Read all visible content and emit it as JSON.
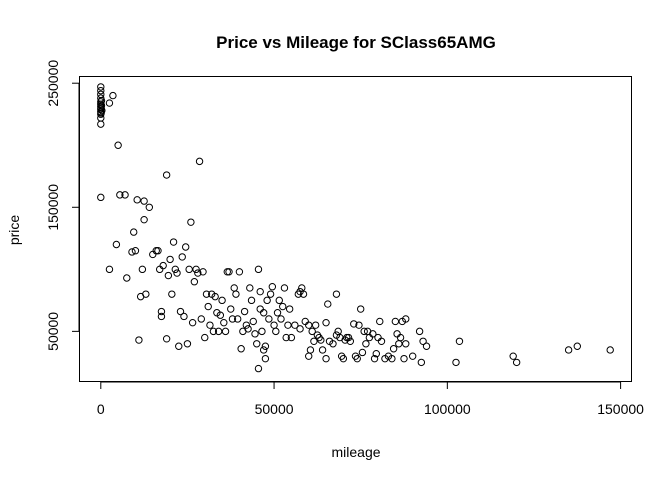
{
  "chart_data": {
    "type": "scatter",
    "title": "Price vs Mileage for SClass65AMG",
    "xlabel": "mileage",
    "ylabel": "price",
    "xlim": [
      -6000,
      153000
    ],
    "ylim": [
      10000,
      255000
    ],
    "xticks": [
      0,
      50000,
      100000,
      150000
    ],
    "xtick_labels": [
      "0",
      "50000",
      "100000",
      "150000"
    ],
    "yticks": [
      50000,
      150000,
      250000
    ],
    "ytick_labels": [
      "50000",
      "150000",
      "250000"
    ],
    "grid": false,
    "legend": "none",
    "points": [
      [
        0,
        247000
      ],
      [
        0,
        244000
      ],
      [
        0,
        241000
      ],
      [
        0,
        238000
      ],
      [
        0,
        235000
      ],
      [
        0,
        233000
      ],
      [
        0,
        231000
      ],
      [
        0,
        229000
      ],
      [
        0,
        227000
      ],
      [
        0,
        225000
      ],
      [
        100,
        230000
      ],
      [
        200,
        236000
      ],
      [
        300,
        228000
      ],
      [
        0,
        222000
      ],
      [
        0,
        217000
      ],
      [
        100,
        226000
      ],
      [
        200,
        232000
      ],
      [
        0,
        158000
      ],
      [
        2500,
        234000
      ],
      [
        2500,
        100000
      ],
      [
        3500,
        240000
      ],
      [
        4500,
        120000
      ],
      [
        5000,
        200000
      ],
      [
        5500,
        160000
      ],
      [
        7000,
        160000
      ],
      [
        7500,
        93000
      ],
      [
        9000,
        114000
      ],
      [
        9500,
        130000
      ],
      [
        10000,
        115000
      ],
      [
        10500,
        156000
      ],
      [
        11000,
        43000
      ],
      [
        11500,
        78000
      ],
      [
        12000,
        100000
      ],
      [
        12500,
        140000
      ],
      [
        12500,
        155000
      ],
      [
        13000,
        80000
      ],
      [
        14000,
        150000
      ],
      [
        15000,
        112000
      ],
      [
        16000,
        115000
      ],
      [
        16500,
        115000
      ],
      [
        17000,
        100000
      ],
      [
        17500,
        66000
      ],
      [
        17500,
        62000
      ],
      [
        18000,
        103000
      ],
      [
        19000,
        176000
      ],
      [
        19000,
        44000
      ],
      [
        19500,
        95000
      ],
      [
        20000,
        108000
      ],
      [
        20500,
        80000
      ],
      [
        21000,
        122000
      ],
      [
        21500,
        100000
      ],
      [
        22000,
        97000
      ],
      [
        22500,
        38000
      ],
      [
        23000,
        66000
      ],
      [
        23500,
        110000
      ],
      [
        24000,
        62000
      ],
      [
        24500,
        118000
      ],
      [
        25000,
        40000
      ],
      [
        25500,
        100000
      ],
      [
        26000,
        138000
      ],
      [
        26500,
        57000
      ],
      [
        27000,
        90000
      ],
      [
        27500,
        100000
      ],
      [
        28000,
        97000
      ],
      [
        28500,
        187000
      ],
      [
        29000,
        60000
      ],
      [
        29500,
        98000
      ],
      [
        30000,
        45000
      ],
      [
        30500,
        80000
      ],
      [
        31000,
        70000
      ],
      [
        31500,
        55000
      ],
      [
        32000,
        80000
      ],
      [
        32500,
        50000
      ],
      [
        33000,
        78000
      ],
      [
        33500,
        65000
      ],
      [
        34000,
        50000
      ],
      [
        34500,
        63000
      ],
      [
        35000,
        75000
      ],
      [
        35500,
        57000
      ],
      [
        36000,
        50000
      ],
      [
        36500,
        98000
      ],
      [
        37000,
        98000
      ],
      [
        37500,
        68000
      ],
      [
        38000,
        60000
      ],
      [
        38500,
        85000
      ],
      [
        39000,
        80000
      ],
      [
        39500,
        60000
      ],
      [
        40000,
        98000
      ],
      [
        40500,
        36000
      ],
      [
        41000,
        50000
      ],
      [
        41500,
        66000
      ],
      [
        42000,
        55000
      ],
      [
        42500,
        52000
      ],
      [
        43000,
        85000
      ],
      [
        43500,
        75000
      ],
      [
        44000,
        58000
      ],
      [
        44500,
        48000
      ],
      [
        45000,
        40000
      ],
      [
        45500,
        100000
      ],
      [
        46000,
        82000
      ],
      [
        46000,
        68000
      ],
      [
        46500,
        50000
      ],
      [
        47000,
        65000
      ],
      [
        47500,
        38000
      ],
      [
        48000,
        75000
      ],
      [
        48500,
        60000
      ],
      [
        49000,
        80000
      ],
      [
        49500,
        86000
      ],
      [
        50000,
        55000
      ],
      [
        50500,
        50000
      ],
      [
        51000,
        65000
      ],
      [
        51500,
        75000
      ],
      [
        52000,
        60000
      ],
      [
        52500,
        70000
      ],
      [
        53000,
        85000
      ],
      [
        53500,
        45000
      ],
      [
        54000,
        55000
      ],
      [
        54500,
        68000
      ],
      [
        55000,
        45000
      ],
      [
        56000,
        55000
      ],
      [
        57000,
        80000
      ],
      [
        57500,
        52000
      ],
      [
        57500,
        82000
      ],
      [
        58000,
        85000
      ],
      [
        58500,
        80000
      ],
      [
        59000,
        58000
      ],
      [
        60000,
        55000
      ],
      [
        60000,
        30000
      ],
      [
        60500,
        35000
      ],
      [
        61000,
        50000
      ],
      [
        61500,
        42000
      ],
      [
        62000,
        55000
      ],
      [
        62500,
        47000
      ],
      [
        63000,
        45000
      ],
      [
        64000,
        35000
      ],
      [
        65000,
        57000
      ],
      [
        65000,
        28000
      ],
      [
        65500,
        72000
      ],
      [
        66000,
        42000
      ],
      [
        67000,
        40000
      ],
      [
        68000,
        80000
      ],
      [
        68500,
        50000
      ],
      [
        69000,
        45000
      ],
      [
        69500,
        30000
      ],
      [
        70000,
        28000
      ],
      [
        70500,
        43000
      ],
      [
        71000,
        45000
      ],
      [
        72000,
        42000
      ],
      [
        73000,
        56000
      ],
      [
        73500,
        30000
      ],
      [
        74000,
        28000
      ],
      [
        74500,
        55000
      ],
      [
        75000,
        68000
      ],
      [
        75500,
        33000
      ],
      [
        76000,
        50000
      ],
      [
        76500,
        40000
      ],
      [
        77000,
        50000
      ],
      [
        77500,
        45000
      ],
      [
        78500,
        48000
      ],
      [
        79000,
        28000
      ],
      [
        79500,
        32000
      ],
      [
        80000,
        45000
      ],
      [
        80500,
        58000
      ],
      [
        81000,
        42000
      ],
      [
        82000,
        28000
      ],
      [
        83000,
        30000
      ],
      [
        84000,
        28000
      ],
      [
        85000,
        58000
      ],
      [
        85500,
        48000
      ],
      [
        86000,
        40000
      ],
      [
        86500,
        45000
      ],
      [
        87000,
        58000
      ],
      [
        87500,
        28000
      ],
      [
        88000,
        60000
      ],
      [
        90000,
        30000
      ],
      [
        92000,
        50000
      ],
      [
        92500,
        25000
      ],
      [
        93000,
        42000
      ],
      [
        94000,
        38000
      ],
      [
        102500,
        25000
      ],
      [
        103500,
        42000
      ],
      [
        119000,
        30000
      ],
      [
        120000,
        25000
      ],
      [
        135000,
        35000
      ],
      [
        137500,
        38000
      ],
      [
        147000,
        35000
      ],
      [
        47000,
        35000
      ],
      [
        47500,
        28000
      ],
      [
        45500,
        20000
      ],
      [
        63500,
        43000
      ],
      [
        71500,
        45000
      ],
      [
        68000,
        47000
      ],
      [
        84500,
        36000
      ],
      [
        88000,
        40000
      ]
    ]
  }
}
